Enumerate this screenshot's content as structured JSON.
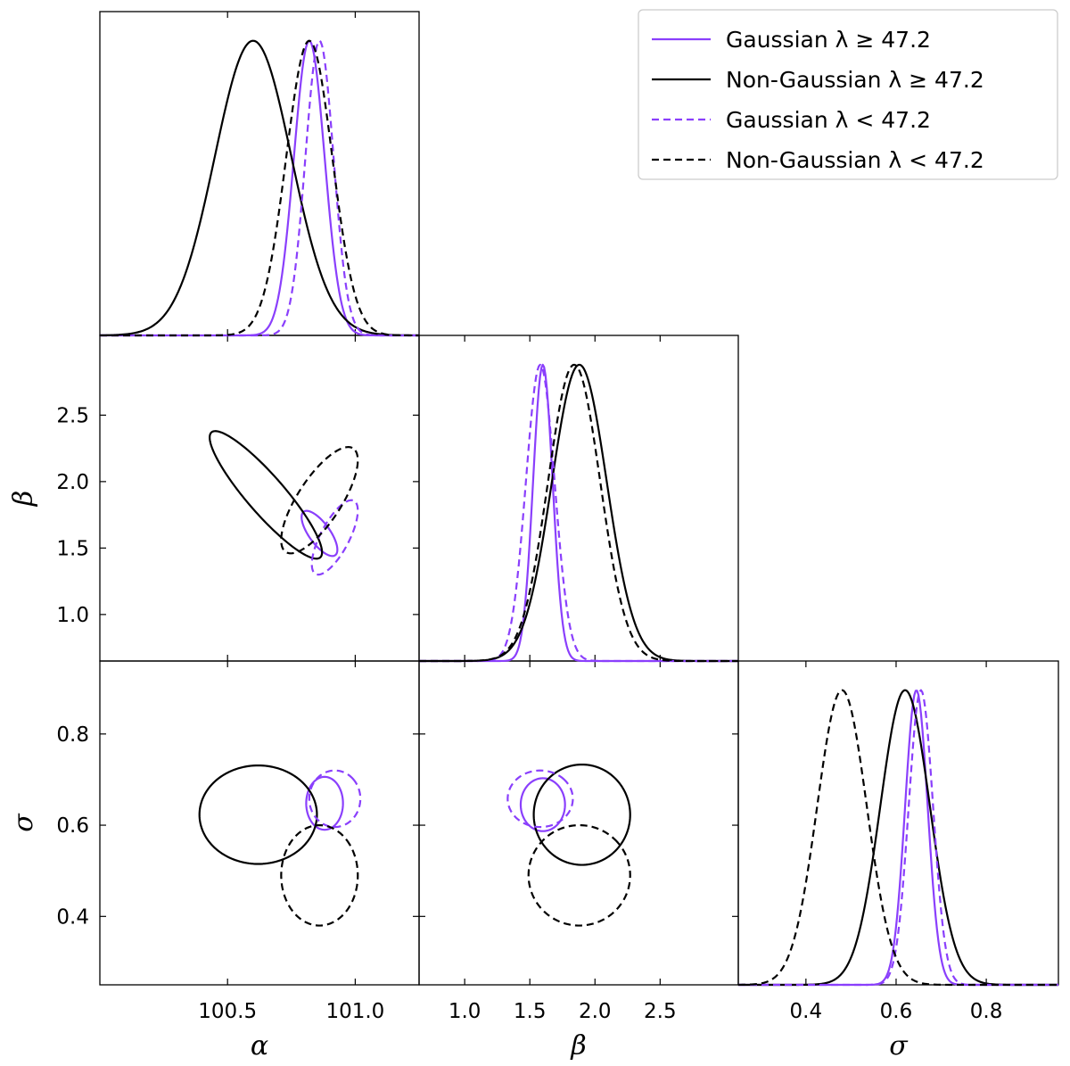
{
  "chart_data": {
    "type": "corner",
    "parameters": [
      {
        "name": "α",
        "range": [
          100.0,
          101.25
        ],
        "ticks": [
          100.5,
          101.0
        ],
        "tick_labels": [
          "100.5",
          "101.0"
        ]
      },
      {
        "name": "β",
        "range": [
          0.65,
          3.1
        ],
        "ticks": [
          1.0,
          1.5,
          2.0,
          2.5
        ],
        "tick_labels": [
          "1.0",
          "1.5",
          "2.0",
          "2.5"
        ]
      },
      {
        "name": "σ",
        "range": [
          0.25,
          0.96
        ],
        "ticks": [
          0.4,
          0.6,
          0.8
        ],
        "tick_labels": [
          "0.4",
          "0.6",
          "0.8"
        ]
      }
    ],
    "legend": {
      "position": "top-right"
    },
    "series": [
      {
        "name": "Gaussian λ ≥ 47.2",
        "color": "#8a3ffc",
        "dash": false,
        "mean": [
          100.82,
          1.6,
          0.645
        ],
        "sd": [
          0.06,
          0.075,
          0.025
        ],
        "contour": [
          {
            "pair": [
              0,
              1
            ],
            "center": [
              100.86,
              1.61
            ],
            "rx": 0.07,
            "ry": 0.17,
            "rho": -0.72
          },
          {
            "pair": [
              0,
              2
            ],
            "center": [
              100.88,
              0.648
            ],
            "rx": 0.072,
            "ry": 0.058,
            "rho": 0.0
          },
          {
            "pair": [
              1,
              2
            ],
            "center": [
              1.6,
              0.645
            ],
            "rx": 0.17,
            "ry": 0.058,
            "rho": 0.0
          }
        ]
      },
      {
        "name": "Non-Gaussian λ ≥ 47.2",
        "color": "#000000",
        "dash": false,
        "mean": [
          100.6,
          1.88,
          0.62
        ],
        "sd": [
          0.15,
          0.21,
          0.055
        ],
        "contour": [
          {
            "pair": [
              0,
              1
            ],
            "center": [
              100.65,
              1.9
            ],
            "rx": 0.22,
            "ry": 0.48,
            "rho": -0.9
          },
          {
            "pair": [
              0,
              2
            ],
            "center": [
              100.62,
              0.623
            ],
            "rx": 0.23,
            "ry": 0.108,
            "rho": 0.0
          },
          {
            "pair": [
              1,
              2
            ],
            "center": [
              1.9,
              0.623
            ],
            "rx": 0.37,
            "ry": 0.11,
            "rho": 0.0
          }
        ]
      },
      {
        "name": "Gaussian λ < 47.2",
        "color": "#8a3ffc",
        "dash": true,
        "mean": [
          100.86,
          1.58,
          0.655
        ],
        "sd": [
          0.055,
          0.11,
          0.027
        ],
        "contour": [
          {
            "pair": [
              0,
              1
            ],
            "center": [
              100.92,
              1.58
            ],
            "rx": 0.09,
            "ry": 0.28,
            "rho": 0.72
          },
          {
            "pair": [
              0,
              2
            ],
            "center": [
              100.92,
              0.658
            ],
            "rx": 0.1,
            "ry": 0.062,
            "rho": 0.0
          },
          {
            "pair": [
              1,
              2
            ],
            "center": [
              1.58,
              0.658
            ],
            "rx": 0.25,
            "ry": 0.062,
            "rho": 0.0
          }
        ]
      },
      {
        "name": "Non-Gaussian λ < 47.2",
        "color": "#000000",
        "dash": true,
        "mean": [
          100.82,
          1.84,
          0.48
        ],
        "sd": [
          0.09,
          0.2,
          0.055
        ],
        "contour": [
          {
            "pair": [
              0,
              1
            ],
            "center": [
              100.86,
              1.86
            ],
            "rx": 0.15,
            "ry": 0.4,
            "rho": 0.75
          },
          {
            "pair": [
              0,
              2
            ],
            "center": [
              100.86,
              0.49
            ],
            "rx": 0.15,
            "ry": 0.11,
            "rho": 0.0
          },
          {
            "pair": [
              1,
              2
            ],
            "center": [
              1.88,
              0.49
            ],
            "rx": 0.39,
            "ry": 0.11,
            "rho": 0.0
          }
        ]
      }
    ]
  }
}
